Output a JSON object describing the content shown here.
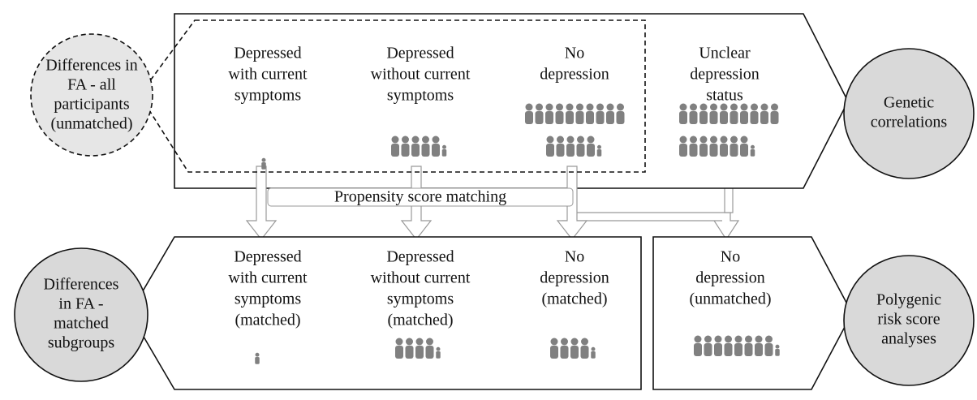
{
  "top": {
    "left_circle": [
      "Differences in",
      "FA - all",
      "participants",
      "(unmatched)"
    ],
    "groups": [
      [
        "Depressed",
        "with current",
        "symptoms"
      ],
      [
        "Depressed",
        "without current",
        "symptoms"
      ],
      [
        "No",
        "depression"
      ],
      [
        "Unclear",
        "depression",
        "status"
      ]
    ],
    "right_circle": [
      "Genetic",
      "correlations"
    ]
  },
  "matching": "Propensity score matching",
  "bottom": {
    "left_circle": [
      "Differences",
      "in FA -",
      "matched",
      "subgroups"
    ],
    "groups": [
      [
        "Depressed",
        "with current",
        "symptoms",
        "(matched)"
      ],
      [
        "Depressed",
        "without current",
        "symptoms",
        "(matched)"
      ],
      [
        "No",
        "depression",
        "(matched)"
      ]
    ],
    "unmatched": [
      "No",
      "depression",
      "(unmatched)"
    ],
    "right_circle": [
      "Polygenic",
      "risk score",
      "analyses"
    ]
  }
}
